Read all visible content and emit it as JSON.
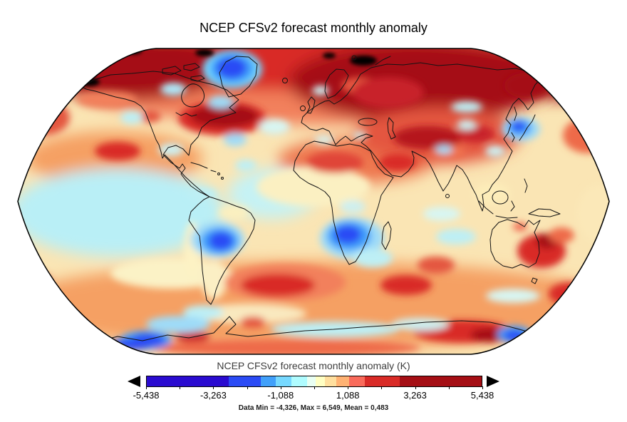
{
  "title": "NCEP CFSv2 forecast monthly anomaly",
  "colorbar": {
    "caption": "NCEP CFSv2 forecast monthly anomaly (K)",
    "tick_labels": [
      "-5,438",
      "-3,263",
      "-1,088",
      "1,088",
      "3,263",
      "5,438"
    ],
    "segments": [
      {
        "color": "#2A0BD0",
        "width": 115
      },
      {
        "color": "#2B4BF5",
        "width": 45
      },
      {
        "color": "#41A0FA",
        "width": 21
      },
      {
        "color": "#77D9FF",
        "width": 22
      },
      {
        "color": "#AFFCFF",
        "width": 22
      },
      {
        "color": "#E9FFF3",
        "width": 12
      },
      {
        "color": "#FFFFC3",
        "width": 13
      },
      {
        "color": "#FFDF9E",
        "width": 16
      },
      {
        "color": "#FFB273",
        "width": 18
      },
      {
        "color": "#F96B5B",
        "width": 22
      },
      {
        "color": "#D92B27",
        "width": 49
      },
      {
        "color": "#A50F15",
        "width": 115
      }
    ],
    "out_of_range_low_arrow": "black-left-triangle",
    "out_of_range_high_arrow": "black-right-triangle"
  },
  "stats_line": "Data Min = -4,326, Max = 6,549, Mean = 0,483",
  "stats": {
    "min": "-4,326",
    "max": "6,549",
    "mean": "0,483"
  },
  "chart_data": {
    "type": "heatmap",
    "subtype": "filled-contour-world-map",
    "projection": "robinson",
    "title": "NCEP CFSv2 forecast monthly anomaly",
    "colorbar_title": "NCEP CFSv2 forecast monthly anomaly (K)",
    "unit": "K",
    "colorbar_range": [
      -5.438,
      5.438
    ],
    "colorbar_ticks": [
      -5.438,
      -3.263,
      -1.088,
      1.088,
      3.263,
      5.438
    ],
    "data_min": -4.326,
    "data_max": 6.549,
    "data_mean": 0.483,
    "legend_position": "bottom",
    "notable_features": [
      {
        "region": "Arctic / Siberia",
        "anomaly": "strong warm (> +5 K, black spots beyond scale)"
      },
      {
        "region": "Baffin Bay / W Greenland",
        "anomaly": "strong cold (~ -3 K)"
      },
      {
        "region": "NW Atlantic off Nova Scotia",
        "anomaly": "strong warm"
      },
      {
        "region": "Bolivia / central South America",
        "anomaly": "strong cold"
      },
      {
        "region": "Southern Africa",
        "anomaly": "strong cold"
      },
      {
        "region": "Sea of Japan",
        "anomaly": "strong cold"
      },
      {
        "region": "Eastern tropical Pacific",
        "anomaly": "mild cold"
      },
      {
        "region": "Sahara / Middle East / Central Asia",
        "anomaly": "warm"
      },
      {
        "region": "Tasman Sea / New Zealand",
        "anomaly": "warm"
      },
      {
        "region": "Southern Ocean",
        "anomaly": "warm with scattered cold patches near Antarctica"
      }
    ]
  }
}
